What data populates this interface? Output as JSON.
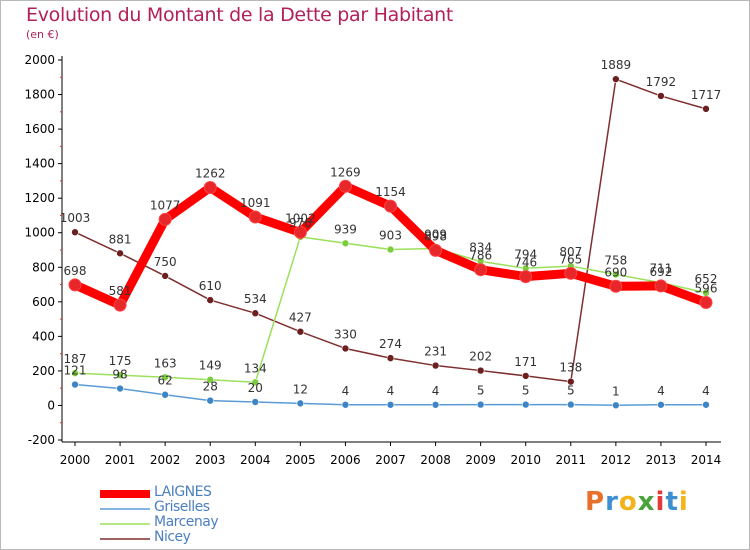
{
  "page": {
    "title": "Evolution du Montant de la Dette par Habitant",
    "subtitle": "(en €)"
  },
  "brand": {
    "text": "Proxiti",
    "colors": [
      "#e8702a",
      "#3d8fd1",
      "#f2b31b",
      "#4aa43d",
      "#e53a3a",
      "#3d8fd1",
      "#f2b31b"
    ]
  },
  "chart_data": {
    "type": "line",
    "x": [
      "2000",
      "2001",
      "2002",
      "2003",
      "2004",
      "2005",
      "2006",
      "2007",
      "2008",
      "2009",
      "2010",
      "2011",
      "2012",
      "2013",
      "2014"
    ],
    "ylim": [
      -200,
      2000
    ],
    "yticks": [
      -200,
      0,
      200,
      400,
      600,
      800,
      1000,
      1200,
      1400,
      1600,
      1800,
      2000
    ],
    "grid": false,
    "legend_position": "bottom-left",
    "series": [
      {
        "name": "LAIGNES",
        "color": "#ff0000",
        "marker": "#e8272b",
        "values": [
          698,
          581,
          1077,
          1262,
          1091,
          1002,
          1269,
          1154,
          898,
          786,
          746,
          765,
          690,
          692,
          596
        ],
        "labels": [
          "698",
          "581",
          "1077",
          "1262",
          "1091",
          "1002",
          "1269",
          "1154",
          "898",
          "786",
          "746",
          "765",
          "690",
          "692",
          "596"
        ]
      },
      {
        "name": "Griselles",
        "color": "#5b9bd5",
        "marker": "#3d85c6",
        "values": [
          121,
          98,
          62,
          28,
          20,
          12,
          4,
          4,
          4,
          5,
          5,
          5,
          1,
          4,
          4
        ],
        "labels": [
          "121",
          "98",
          "62",
          "28",
          "20",
          "12",
          "4",
          "4",
          "4",
          "5",
          "5",
          "5",
          "1",
          "4",
          "4"
        ]
      },
      {
        "name": "Marcenay",
        "color": "#9be05b",
        "marker": "#7ccc3c",
        "values": [
          187,
          175,
          163,
          149,
          134,
          976,
          939,
          903,
          909,
          834,
          794,
          807,
          758,
          711,
          652
        ],
        "labels": [
          "187",
          "175",
          "163",
          "149",
          "134",
          "976",
          "939",
          "903",
          "909",
          "834",
          "794",
          "807",
          "758",
          "711",
          "652"
        ]
      },
      {
        "name": "Nicey",
        "color": "#7f2f2f",
        "marker": "#6b1f1f",
        "values": [
          1003,
          881,
          750,
          610,
          534,
          427,
          330,
          274,
          231,
          202,
          171,
          138,
          1889,
          1792,
          1717
        ],
        "labels": [
          "1003",
          "881",
          "750",
          "610",
          "534",
          "427",
          "330",
          "274",
          "231",
          "202",
          "171",
          "138",
          "1889",
          "1792",
          "1717"
        ]
      }
    ]
  }
}
